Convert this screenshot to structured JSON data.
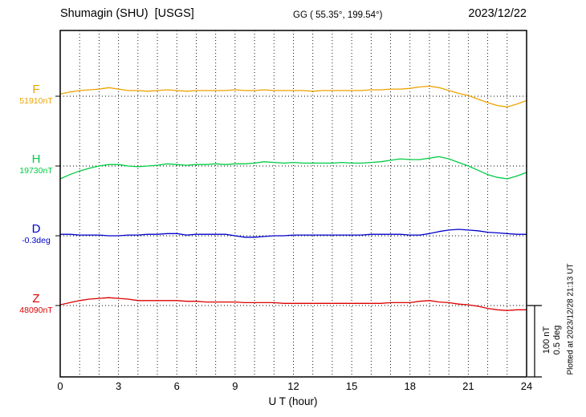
{
  "header": {
    "station_title": "Shumagin (SHU)  [USGS]",
    "geo_coords": "GG ( 55.35°, 199.54°)",
    "date": "2023/12/22"
  },
  "plot_note": "Plotted at 2023/12/28 21:13 UT",
  "scalebar": {
    "nt_label": "100 nT",
    "deg_label": "0.5 deg"
  },
  "xaxis": {
    "title": "U T (hour)",
    "tick_labels": [
      "0",
      "3",
      "6",
      "9",
      "12",
      "15",
      "18",
      "21",
      "24"
    ],
    "tick_hours": [
      0,
      3,
      6,
      9,
      12,
      15,
      18,
      21,
      24
    ]
  },
  "chart_data": {
    "type": "line",
    "title": "Shumagin (SHU) [USGS] magnetogram for 2023/12/22",
    "xlabel": "U T (hour)",
    "xlim": [
      0,
      24
    ],
    "grid": "dotted vertical line every 1 hour; dotted horizontal baseline per channel",
    "scale": {
      "units_per_bar": 100,
      "bar_labels": [
        "100 nT",
        "0.5 deg"
      ]
    },
    "x_hours": [
      0,
      0.5,
      1,
      1.5,
      2,
      2.5,
      3,
      3.5,
      4,
      4.5,
      5,
      5.5,
      6,
      6.5,
      7,
      7.5,
      8,
      8.5,
      9,
      9.5,
      10,
      10.5,
      11,
      11.5,
      12,
      12.5,
      13,
      13.5,
      14,
      14.5,
      15,
      15.5,
      16,
      16.5,
      17,
      17.5,
      18,
      18.5,
      19,
      19.5,
      20,
      20.5,
      21,
      21.5,
      22,
      22.5,
      23,
      23.5,
      24
    ],
    "series": [
      {
        "name": "F",
        "baseline_value": "51910nT",
        "color": "#eea200",
        "units": "nT offset from baseline",
        "offsets": [
          3,
          6,
          8,
          9,
          10,
          12,
          10,
          8,
          8,
          7,
          8,
          9,
          8,
          7,
          8,
          8,
          8,
          8,
          9,
          8,
          8,
          9,
          8,
          8,
          8,
          8,
          7,
          8,
          8,
          8,
          8,
          8,
          9,
          9,
          10,
          10,
          11,
          13,
          14,
          12,
          8,
          4,
          1,
          -4,
          -9,
          -13,
          -15,
          -11,
          -6
        ]
      },
      {
        "name": "H",
        "baseline_value": "19730nT",
        "color": "#00cc44",
        "units": "nT offset from baseline",
        "offsets": [
          -18,
          -12,
          -7,
          -3,
          0,
          2,
          2,
          0,
          -1,
          0,
          1,
          3,
          2,
          1,
          2,
          2,
          3,
          2,
          3,
          3,
          4,
          6,
          5,
          4,
          5,
          4,
          4,
          4,
          4,
          5,
          4,
          4,
          5,
          6,
          8,
          10,
          9,
          9,
          11,
          13,
          10,
          5,
          0,
          -6,
          -12,
          -16,
          -18,
          -14,
          -9
        ]
      },
      {
        "name": "D",
        "baseline_value": "-0.3deg",
        "color": "#0000cc",
        "units": "scaled offset (0.5 deg = 100 units)",
        "offsets": [
          2,
          2,
          1,
          1,
          1,
          0,
          0,
          1,
          1,
          2,
          2,
          3,
          3,
          1,
          2,
          2,
          2,
          2,
          0,
          -2,
          -2,
          -1,
          0,
          0,
          1,
          1,
          1,
          1,
          1,
          1,
          1,
          1,
          2,
          2,
          2,
          2,
          1,
          1,
          3,
          6,
          8,
          9,
          8,
          7,
          5,
          4,
          3,
          2,
          2
        ]
      },
      {
        "name": "Z",
        "baseline_value": "48090nT",
        "color": "#dd0000",
        "units": "nT offset from baseline",
        "offsets": [
          1,
          4,
          7,
          9,
          10,
          11,
          10,
          9,
          7,
          7,
          7,
          7,
          7,
          6,
          6,
          5,
          5,
          5,
          5,
          4,
          4,
          4,
          4,
          3,
          3,
          3,
          3,
          3,
          3,
          3,
          3,
          3,
          3,
          3,
          4,
          4,
          4,
          6,
          7,
          5,
          4,
          2,
          1,
          -1,
          -4,
          -6,
          -7,
          -6,
          -6
        ]
      }
    ]
  }
}
